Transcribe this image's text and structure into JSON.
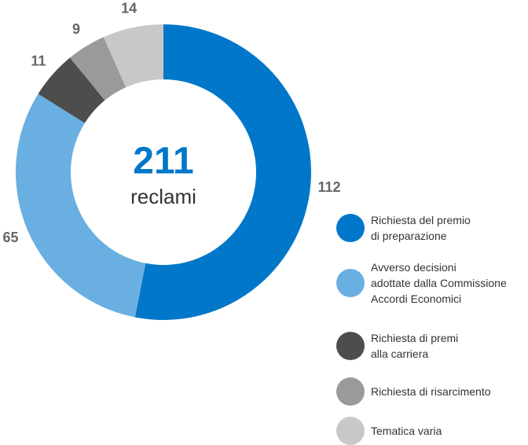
{
  "chart_data": {
    "type": "donut",
    "center_value": 211,
    "center_label": "reclami",
    "categories": [
      "Richiesta del premio\ndi preparazione",
      "Avverso decisioni\nadottate dalla Commissione\nAccordi Economici",
      "Richiesta di premi\nalla carriera",
      "Richiesta di risarcimento",
      "Tematica varia"
    ],
    "values": [
      112,
      65,
      11,
      9,
      14
    ],
    "colors": [
      "#0077c8",
      "#6aafe1",
      "#4d4d4d",
      "#9a9a9a",
      "#c8c8c8"
    ],
    "legend": "bottom-right"
  }
}
